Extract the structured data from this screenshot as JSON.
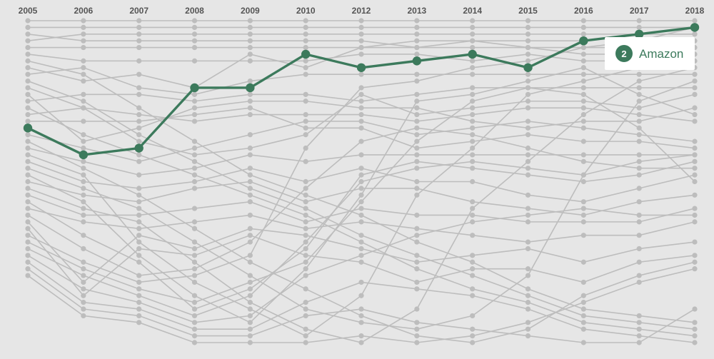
{
  "colors": {
    "background": "#e6e6e6",
    "grey": "#bdbdbd",
    "highlight": "#3c7a5c",
    "label": "#555555",
    "callout_bg": "#ffffff"
  },
  "chart_data": {
    "type": "line",
    "subtype": "bump chart (rank over time)",
    "years": [
      "2005",
      "2006",
      "2007",
      "2008",
      "2009",
      "2010",
      "2012",
      "2013",
      "2014",
      "2015",
      "2016",
      "2017",
      "2018"
    ],
    "y_axis": {
      "inverted": true,
      "rank_range": [
        1,
        49
      ],
      "labels_shown": false
    },
    "grid": false,
    "highlight": {
      "name": "Amazon",
      "ranks": [
        17,
        21,
        20,
        11,
        11,
        6,
        8,
        7,
        6,
        8,
        4,
        3,
        2
      ],
      "label_rank": "2",
      "label_position": "right end, near 2017–2018"
    },
    "background_series": [
      {
        "ranks": [
          1,
          1,
          1,
          1,
          1,
          1,
          1,
          1,
          1,
          1,
          1,
          1,
          1
        ]
      },
      {
        "ranks": [
          2,
          2,
          2,
          2,
          2,
          2,
          2,
          2,
          2,
          2,
          2,
          2,
          2
        ]
      },
      {
        "ranks": [
          4,
          3,
          3,
          3,
          3,
          3,
          3,
          3,
          3,
          3,
          3,
          3,
          3
        ]
      },
      {
        "ranks": [
          3,
          4,
          4,
          4,
          4,
          4,
          4,
          5,
          4,
          4,
          4,
          3,
          3
        ]
      },
      {
        "ranks": [
          5,
          5,
          5,
          5,
          5,
          5,
          5,
          5,
          5,
          5,
          5,
          5,
          5
        ]
      },
      {
        "ranks": [
          6,
          7,
          7,
          7,
          7,
          7,
          6,
          6,
          7,
          6,
          7,
          7,
          6
        ]
      },
      {
        "ranks": [
          8,
          10,
          9,
          11,
          6,
          8,
          5,
          4,
          4,
          5,
          6,
          6,
          7
        ]
      },
      {
        "ranks": [
          9,
          8,
          11,
          12,
          10,
          9,
          9,
          9,
          9,
          9,
          9,
          9,
          9
        ]
      },
      {
        "ranks": [
          13,
          12,
          12,
          13,
          12,
          12,
          13,
          12,
          11,
          11,
          11,
          11,
          11
        ]
      },
      {
        "ranks": [
          15,
          14,
          15,
          16,
          15,
          15,
          15,
          16,
          15,
          14,
          14,
          15,
          16
        ]
      },
      {
        "ranks": [
          16,
          16,
          16,
          15,
          14,
          17,
          17,
          20,
          19,
          18,
          19,
          19,
          20
        ]
      },
      {
        "ranks": [
          18,
          20,
          22,
          20,
          18,
          16,
          16,
          18,
          17,
          16,
          17,
          18,
          19
        ]
      },
      {
        "ranks": [
          20,
          22,
          24,
          23,
          21,
          22,
          21,
          21,
          21,
          21,
          21,
          21,
          21
        ]
      },
      {
        "ranks": [
          22,
          25,
          26,
          25,
          23,
          25,
          23,
          25,
          25,
          27,
          28,
          26,
          24
        ]
      },
      {
        "ranks": [
          25,
          27,
          28,
          26,
          25,
          28,
          26,
          26,
          28,
          29,
          30,
          28,
          27
        ]
      },
      {
        "ranks": [
          27,
          30,
          30,
          29,
          28,
          31,
          29,
          30,
          30,
          31,
          31,
          31,
          29
        ]
      },
      {
        "ranks": [
          29,
          31,
          32,
          31,
          30,
          32,
          31,
          32,
          33,
          34,
          33,
          33,
          31
        ]
      },
      {
        "ranks": [
          31,
          40,
          33,
          35,
          32,
          33,
          35,
          37,
          36,
          35,
          37,
          35,
          34
        ]
      },
      {
        "ranks": [
          32,
          42,
          35,
          36,
          33,
          36,
          37,
          40,
          38,
          38,
          40,
          37,
          36
        ]
      },
      {
        "ranks": [
          11,
          14,
          19,
          21,
          20,
          18,
          12,
          15,
          14,
          13,
          13,
          14,
          12
        ]
      },
      {
        "ranks": [
          12,
          19,
          17,
          14,
          13,
          13,
          14,
          14,
          16,
          17,
          16,
          16,
          14
        ]
      },
      {
        "ranks": [
          10,
          13,
          18,
          22,
          26,
          29,
          33,
          36,
          39,
          42,
          45,
          46,
          47
        ]
      },
      {
        "ranks": [
          7,
          9,
          14,
          19,
          24,
          27,
          30,
          34,
          37,
          41,
          44,
          45,
          46
        ]
      },
      {
        "ranks": [
          14,
          18,
          21,
          24,
          27,
          30,
          34,
          38,
          41,
          43,
          46,
          47,
          48
        ]
      },
      {
        "ranks": [
          19,
          23,
          27,
          32,
          37,
          41,
          45,
          48,
          49,
          47,
          42,
          39,
          37
        ]
      },
      {
        "ranks": [
          23,
          26,
          29,
          34,
          39,
          44,
          46,
          47,
          45,
          39,
          24,
          13,
          10
        ]
      },
      {
        "ranks": [
          26,
          29,
          31,
          37,
          43,
          47,
          49,
          44,
          29,
          22,
          15,
          10,
          8
        ]
      },
      {
        "ranks": [
          21,
          24,
          34,
          40,
          44,
          48,
          42,
          27,
          20,
          12,
          10,
          8,
          4
        ]
      },
      {
        "ranks": [
          24,
          28,
          36,
          42,
          46,
          38,
          27,
          13,
          12,
          10,
          8,
          12,
          15
        ]
      },
      {
        "ranks": [
          28,
          33,
          37,
          44,
          41,
          35,
          24,
          22,
          23,
          24,
          25,
          24,
          22
        ]
      },
      {
        "ranks": [
          30,
          35,
          39,
          38,
          34,
          26,
          19,
          17,
          18,
          20,
          22,
          23,
          23
        ]
      },
      {
        "ranks": [
          33,
          37,
          40,
          39,
          36,
          20,
          11,
          10,
          8,
          7,
          5,
          4,
          2
        ]
      },
      {
        "ranks": [
          34,
          38,
          41,
          43,
          40,
          37,
          28,
          19,
          13,
          11,
          12,
          17,
          25
        ]
      },
      {
        "ranks": [
          35,
          39,
          42,
          45,
          42,
          34,
          25,
          23,
          22,
          23,
          24,
          22,
          21
        ]
      },
      {
        "ranks": [
          36,
          41,
          43,
          46,
          45,
          39,
          36,
          33,
          31,
          30,
          29,
          30,
          30
        ]
      },
      {
        "ranks": [
          37,
          43,
          44,
          47,
          47,
          43,
          40,
          41,
          42,
          44,
          47,
          48,
          49
        ]
      },
      {
        "ranks": [
          38,
          44,
          45,
          48,
          48,
          45,
          44,
          46,
          47,
          48,
          49,
          49,
          44
        ]
      },
      {
        "ranks": [
          39,
          45,
          46,
          49,
          49,
          49,
          48,
          49,
          48,
          46,
          43,
          40,
          38
        ]
      }
    ]
  },
  "callout": {
    "rank": "2",
    "label": "Amazon"
  }
}
